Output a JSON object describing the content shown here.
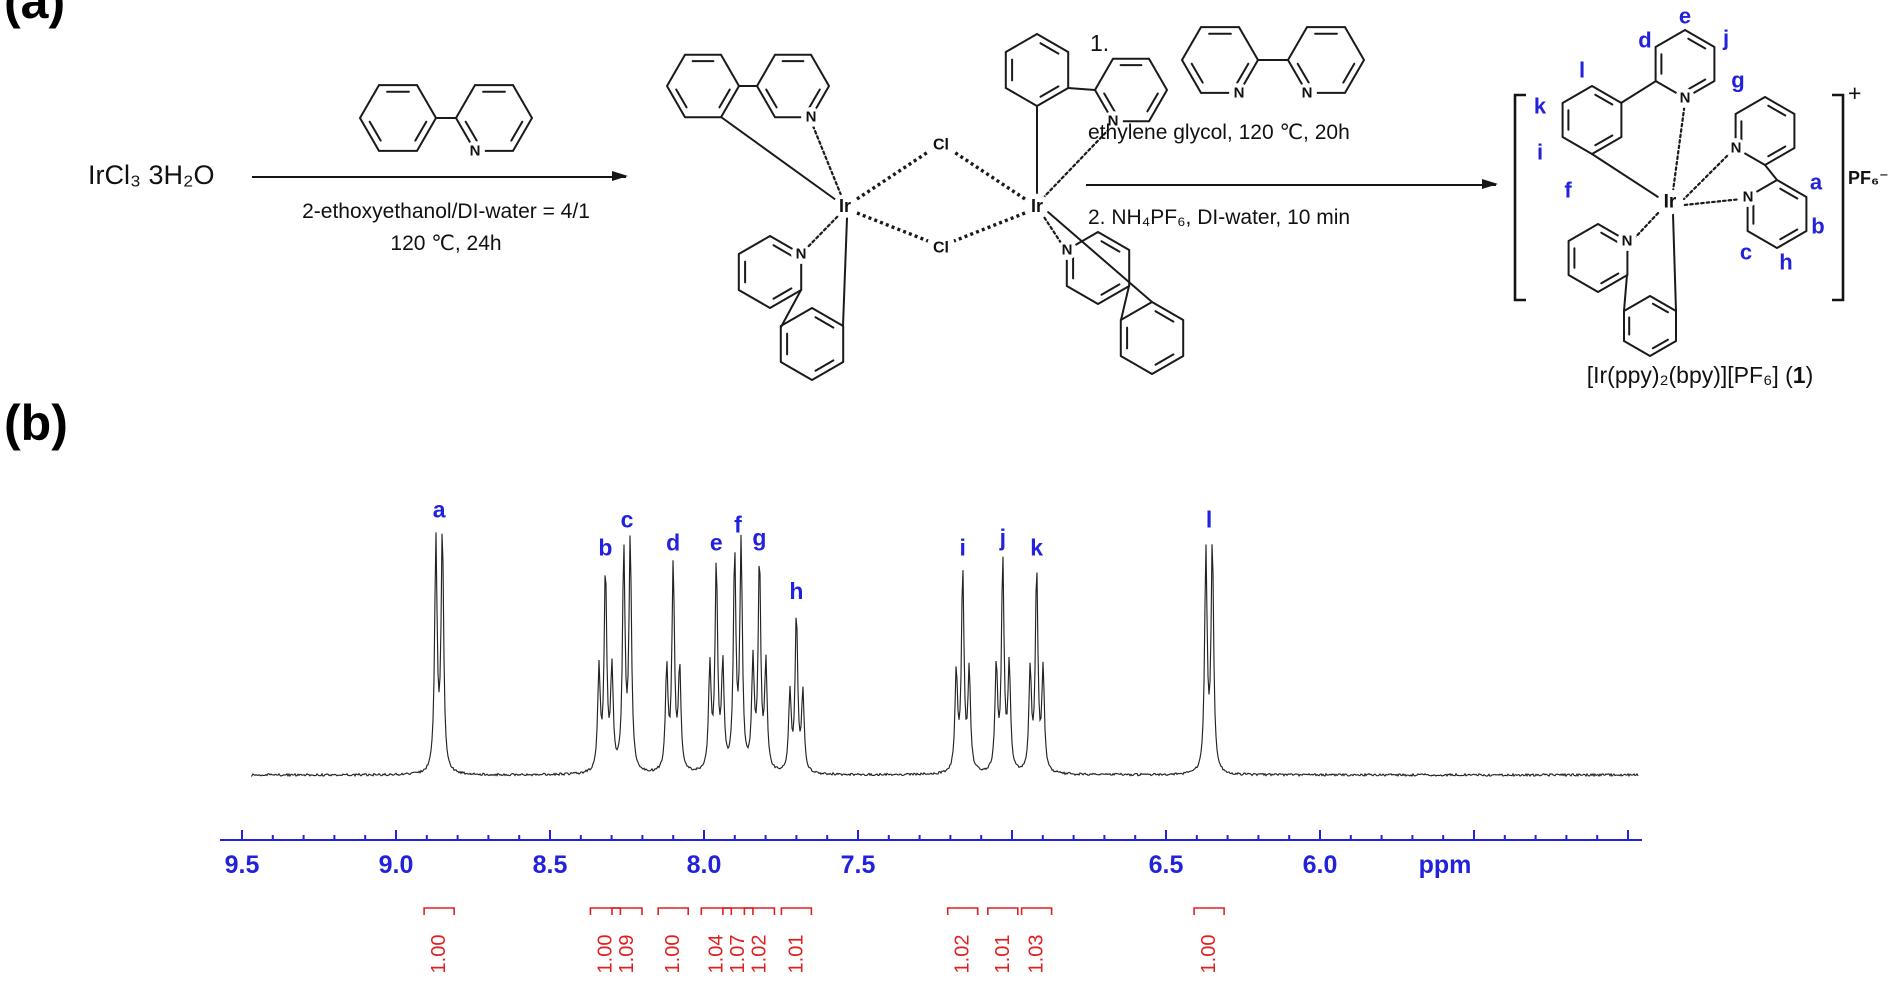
{
  "figure": {
    "panel_a_label": "(a)",
    "panel_b_label": "(b)",
    "caption_pre": "[Ir(ppy)₂(bpy)][PF₆] (",
    "caption_num": "1",
    "caption_post": ")"
  },
  "scheme": {
    "reactant": "IrCl₃ 3H₂O",
    "step1": {
      "conditions_line1": "2-ethoxyethanol/DI-water  = 4/1",
      "conditions_line2": "120 ℃, 24h"
    },
    "step2": {
      "list_number": "1.",
      "conditions_line1": "ethylene  glycol,  120 ℃, 20h",
      "conditions_line2": "2. NH₄PF₆,  DI-water,  10 min"
    },
    "atoms": {
      "ir": "Ir",
      "cl": "Cl",
      "n": "N"
    },
    "product": {
      "charge": "+",
      "counterion": "PF₆⁻",
      "site_labels": [
        "a",
        "b",
        "c",
        "d",
        "e",
        "f",
        "g",
        "h",
        "i",
        "j",
        "k",
        "l"
      ]
    }
  },
  "colors": {
    "accent_blue": "#2222dd",
    "integral_red": "#e02020",
    "structure_black": "#1a1a1a"
  },
  "chart_data": {
    "type": "line",
    "title": "",
    "xlabel": "ppm",
    "ylabel": "",
    "x_axis": {
      "reversed": true,
      "range_shown": [
        9.6,
        5.0
      ],
      "ticks": [
        9.5,
        9.0,
        8.5,
        8.0,
        7.5,
        6.5,
        6.0
      ],
      "tick_labels": [
        "9.5",
        "9.0",
        "8.5",
        "8.0",
        "7.5",
        "6.5",
        "6.0"
      ]
    },
    "grid": false,
    "peaks": [
      {
        "label": "a",
        "ppm": 8.86,
        "multiplicity": "d",
        "rel_height": 0.94,
        "integration": "1.00"
      },
      {
        "label": "b",
        "ppm": 8.32,
        "multiplicity": "t",
        "rel_height": 0.79,
        "integration": "1.00"
      },
      {
        "label": "c",
        "ppm": 8.25,
        "multiplicity": "d",
        "rel_height": 0.9,
        "integration": "1.09"
      },
      {
        "label": "d",
        "ppm": 8.1,
        "multiplicity": "t",
        "rel_height": 0.81,
        "integration": "1.00"
      },
      {
        "label": "e",
        "ppm": 7.96,
        "multiplicity": "t",
        "rel_height": 0.81,
        "integration": "1.04"
      },
      {
        "label": "f",
        "ppm": 7.89,
        "multiplicity": "d",
        "rel_height": 0.88,
        "integration": "1.07"
      },
      {
        "label": "g",
        "ppm": 7.82,
        "multiplicity": "t",
        "rel_height": 0.83,
        "integration": "1.02"
      },
      {
        "label": "h",
        "ppm": 7.7,
        "multiplicity": "t",
        "rel_height": 0.62,
        "integration": "1.01"
      },
      {
        "label": "i",
        "ppm": 7.16,
        "multiplicity": "t",
        "rel_height": 0.79,
        "integration": "1.02"
      },
      {
        "label": "j",
        "ppm": 7.03,
        "multiplicity": "t",
        "rel_height": 0.83,
        "integration": "1.01"
      },
      {
        "label": "k",
        "ppm": 6.92,
        "multiplicity": "t",
        "rel_height": 0.79,
        "integration": "1.03"
      },
      {
        "label": "l",
        "ppm": 6.36,
        "multiplicity": "d",
        "rel_height": 0.9,
        "integration": "1.00"
      }
    ]
  }
}
